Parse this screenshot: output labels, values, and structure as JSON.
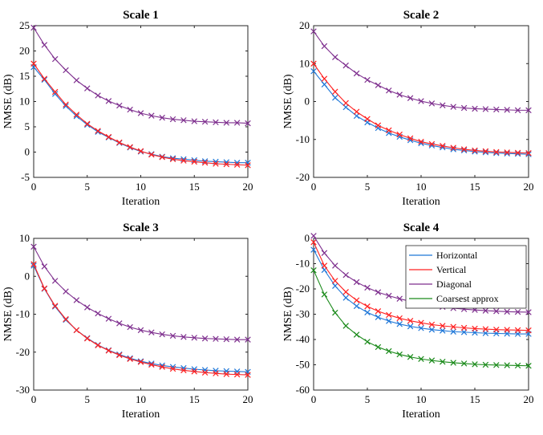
{
  "chart_data": [
    {
      "type": "line",
      "title": "Scale 1",
      "xlabel": "Iteration",
      "ylabel": "NMSE (dB)",
      "xlim": [
        0,
        20
      ],
      "ylim": [
        -5,
        25
      ],
      "xticks": [
        0,
        5,
        10,
        15,
        20
      ],
      "yticks": [
        -5,
        0,
        5,
        10,
        15,
        20,
        25
      ],
      "x": [
        0,
        1,
        2,
        3,
        4,
        5,
        6,
        7,
        8,
        9,
        10,
        11,
        12,
        13,
        14,
        15,
        16,
        17,
        18,
        19,
        20
      ],
      "grid": false,
      "legend": null,
      "series": [
        {
          "color": "#1f77d8",
          "marker": "x",
          "values": [
            16.8,
            14.3,
            11.5,
            9.1,
            7.1,
            5.4,
            4.0,
            2.9,
            1.8,
            0.9,
            0.1,
            -0.4,
            -0.9,
            -1.2,
            -1.4,
            -1.6,
            -1.8,
            -1.9,
            -2.0,
            -2.1,
            -2.1
          ]
        },
        {
          "color": "#ff2020",
          "marker": "x",
          "values": [
            17.5,
            14.5,
            11.9,
            9.4,
            7.4,
            5.6,
            4.2,
            3.0,
            1.9,
            1.0,
            0.2,
            -0.5,
            -1.0,
            -1.4,
            -1.7,
            -1.9,
            -2.1,
            -2.3,
            -2.4,
            -2.5,
            -2.6
          ]
        },
        {
          "color": "#7e2f8e",
          "marker": "x",
          "values": [
            24.6,
            21.2,
            18.4,
            16.2,
            14.2,
            12.6,
            11.2,
            10.1,
            9.2,
            8.4,
            7.7,
            7.2,
            6.8,
            6.5,
            6.3,
            6.1,
            6.0,
            5.9,
            5.8,
            5.8,
            5.7
          ]
        }
      ]
    },
    {
      "type": "line",
      "title": "Scale 2",
      "xlabel": "Iteration",
      "ylabel": "NMSE (dB)",
      "xlim": [
        0,
        20
      ],
      "ylim": [
        -20,
        20
      ],
      "xticks": [
        0,
        5,
        10,
        15,
        20
      ],
      "yticks": [
        -20,
        -10,
        0,
        10,
        20
      ],
      "x": [
        0,
        1,
        2,
        3,
        4,
        5,
        6,
        7,
        8,
        9,
        10,
        11,
        12,
        13,
        14,
        15,
        16,
        17,
        18,
        19,
        20
      ],
      "grid": false,
      "legend": null,
      "series": [
        {
          "color": "#1f77d8",
          "marker": "x",
          "values": [
            8.0,
            4.5,
            1.0,
            -1.5,
            -3.8,
            -5.5,
            -7.0,
            -8.3,
            -9.3,
            -10.2,
            -11.0,
            -11.6,
            -12.1,
            -12.6,
            -12.9,
            -13.2,
            -13.4,
            -13.6,
            -13.7,
            -13.8,
            -13.9
          ]
        },
        {
          "color": "#ff2020",
          "marker": "x",
          "values": [
            10.0,
            6.0,
            2.6,
            -0.4,
            -2.7,
            -4.6,
            -6.3,
            -7.6,
            -8.7,
            -9.7,
            -10.6,
            -11.2,
            -11.7,
            -12.2,
            -12.6,
            -12.9,
            -13.1,
            -13.3,
            -13.4,
            -13.5,
            -13.6
          ]
        },
        {
          "color": "#7e2f8e",
          "marker": "x",
          "values": [
            18.5,
            14.6,
            11.7,
            9.5,
            7.4,
            5.7,
            4.3,
            2.9,
            1.8,
            0.9,
            0.1,
            -0.5,
            -1.0,
            -1.4,
            -1.7,
            -1.9,
            -2.0,
            -2.1,
            -2.2,
            -2.3,
            -2.3
          ]
        }
      ]
    },
    {
      "type": "line",
      "title": "Scale 3",
      "xlabel": "Iteration",
      "ylabel": "NMSE (dB)",
      "xlim": [
        0,
        20
      ],
      "ylim": [
        -30,
        10
      ],
      "xticks": [
        0,
        5,
        10,
        15,
        20
      ],
      "yticks": [
        -30,
        -20,
        -10,
        0,
        10
      ],
      "x": [
        0,
        1,
        2,
        3,
        4,
        5,
        6,
        7,
        8,
        9,
        10,
        11,
        12,
        13,
        14,
        15,
        16,
        17,
        18,
        19,
        20
      ],
      "grid": false,
      "legend": null,
      "series": [
        {
          "color": "#1f77d8",
          "marker": "x",
          "values": [
            2.8,
            -3.3,
            -8.0,
            -11.5,
            -14.2,
            -16.3,
            -18.1,
            -19.5,
            -20.6,
            -21.6,
            -22.4,
            -23.0,
            -23.5,
            -23.9,
            -24.2,
            -24.5,
            -24.7,
            -24.9,
            -25.0,
            -25.1,
            -25.2
          ]
        },
        {
          "color": "#ff2020",
          "marker": "x",
          "values": [
            3.2,
            -3.2,
            -7.8,
            -11.3,
            -14.2,
            -16.4,
            -18.2,
            -19.6,
            -20.8,
            -21.8,
            -22.6,
            -23.3,
            -23.9,
            -24.4,
            -24.8,
            -25.1,
            -25.4,
            -25.6,
            -25.8,
            -25.9,
            -26.0
          ]
        },
        {
          "color": "#7e2f8e",
          "marker": "x",
          "values": [
            7.8,
            2.6,
            -1.2,
            -4.0,
            -6.3,
            -8.2,
            -9.8,
            -11.2,
            -12.4,
            -13.4,
            -14.2,
            -14.8,
            -15.3,
            -15.7,
            -16.0,
            -16.2,
            -16.4,
            -16.5,
            -16.6,
            -16.7,
            -16.7
          ]
        }
      ]
    },
    {
      "type": "line",
      "title": "Scale 4",
      "xlabel": "Iteration",
      "ylabel": "NMSE (dB)",
      "xlim": [
        0,
        20
      ],
      "ylim": [
        -60,
        0
      ],
      "xticks": [
        0,
        5,
        10,
        15,
        20
      ],
      "yticks": [
        -60,
        -50,
        -40,
        -30,
        -20,
        -10,
        0
      ],
      "x": [
        0,
        1,
        2,
        3,
        4,
        5,
        6,
        7,
        8,
        9,
        10,
        11,
        12,
        13,
        14,
        15,
        16,
        17,
        18,
        19,
        20
      ],
      "grid": false,
      "legend": "top-right",
      "series": [
        {
          "name": "Horizontal",
          "color": "#1f77d8",
          "marker": "x",
          "values": [
            -4.5,
            -12.5,
            -18.8,
            -23.5,
            -26.8,
            -29.3,
            -31.2,
            -32.7,
            -33.9,
            -34.8,
            -35.5,
            -36.1,
            -36.5,
            -36.9,
            -37.1,
            -37.3,
            -37.5,
            -37.6,
            -37.7,
            -37.8,
            -37.8
          ]
        },
        {
          "name": "Vertical",
          "color": "#ff2020",
          "marker": "x",
          "values": [
            -1.5,
            -10.8,
            -16.8,
            -21.2,
            -24.5,
            -26.9,
            -28.8,
            -30.3,
            -31.6,
            -32.6,
            -33.4,
            -34.1,
            -34.6,
            -35.0,
            -35.4,
            -35.7,
            -35.9,
            -36.1,
            -36.2,
            -36.3,
            -36.4
          ]
        },
        {
          "name": "Diagonal",
          "color": "#7e2f8e",
          "marker": "x",
          "values": [
            1.0,
            -5.8,
            -10.8,
            -14.5,
            -17.3,
            -19.5,
            -21.3,
            -22.7,
            -23.9,
            -24.9,
            -25.8,
            -26.5,
            -27.1,
            -27.6,
            -28.0,
            -28.3,
            -28.6,
            -28.8,
            -29.0,
            -29.1,
            -29.2
          ]
        },
        {
          "name": "Coarsest approx",
          "color": "#1a8a1a",
          "marker": "x",
          "values": [
            -12.6,
            -22.2,
            -29.4,
            -34.6,
            -38.1,
            -40.9,
            -43.0,
            -44.6,
            -45.9,
            -46.9,
            -47.7,
            -48.3,
            -48.8,
            -49.2,
            -49.5,
            -49.8,
            -50.0,
            -50.1,
            -50.2,
            -50.3,
            -50.4
          ]
        }
      ]
    }
  ]
}
